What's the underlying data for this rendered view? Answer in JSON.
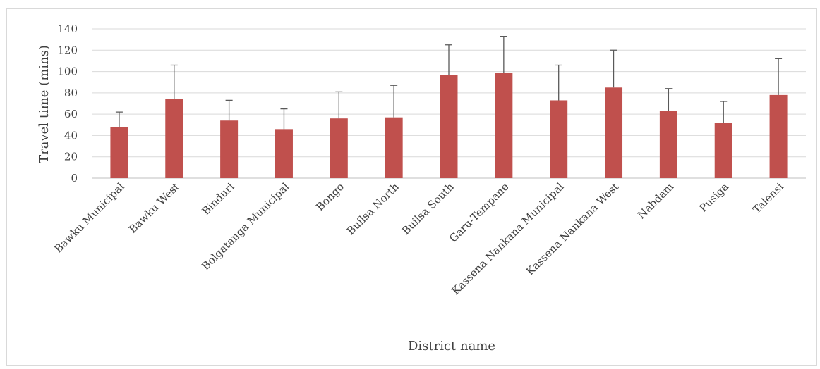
{
  "chart_data": {
    "type": "bar",
    "categories": [
      "Bawku Municipal",
      "Bawku West",
      "Binduri",
      "Bolgatanga Municipal",
      "Bongo",
      "Builsa North",
      "Builsa South",
      "Garu-Tempane",
      "Kassena Nankana Municipal",
      "Kassena Nankana West",
      "Nabdam",
      "Pusiga",
      "Talensi"
    ],
    "values": [
      48,
      74,
      54,
      46,
      56,
      57,
      97,
      99,
      73,
      85,
      63,
      52,
      78
    ],
    "error_upper": [
      62,
      106,
      73,
      65,
      81,
      87,
      125,
      133,
      106,
      120,
      84,
      72,
      112
    ],
    "title": "",
    "xlabel": "District name",
    "ylabel": "Travel time (mins)",
    "ylim": [
      0,
      140
    ],
    "yticks": [
      0,
      20,
      40,
      60,
      80,
      100,
      120,
      140
    ],
    "grid": true,
    "legend": "none",
    "bar_color": "#c0504d",
    "error_color": "#595959",
    "grid_color": "#d9d9d9"
  }
}
